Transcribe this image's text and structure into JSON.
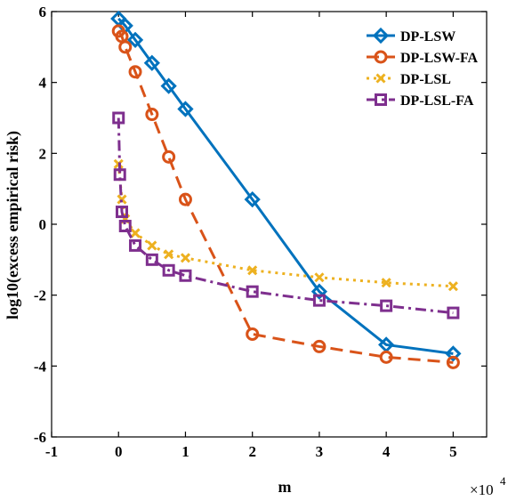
{
  "chart_data": {
    "type": "line",
    "xlabel": "m",
    "ylabel": "log10(excess empirical risk)",
    "x_multiplier_label": "×10",
    "x_multiplier_exponent": "4",
    "xlim": [
      -1,
      5.5
    ],
    "ylim": [
      -6,
      6
    ],
    "xticks": [
      -1,
      0,
      1,
      2,
      3,
      4,
      5
    ],
    "yticks": [
      -6,
      -4,
      -2,
      0,
      2,
      4,
      6
    ],
    "xtick_labels": [
      "-1",
      "0",
      "1",
      "2",
      "3",
      "4",
      "5"
    ],
    "ytick_labels": [
      "-6",
      "-4",
      "-2",
      "0",
      "2",
      "4",
      "6"
    ],
    "grid": false,
    "legend_position": "top-right",
    "series": [
      {
        "name": "DP-LSW",
        "color": "#0072BD",
        "line_style": "solid",
        "marker": "diamond",
        "x": [
          0,
          0.1,
          0.25,
          0.5,
          0.75,
          1,
          2,
          3,
          4,
          5
        ],
        "y": [
          5.8,
          5.6,
          5.2,
          4.55,
          3.9,
          3.25,
          0.7,
          -1.9,
          -3.4,
          -3.65
        ]
      },
      {
        "name": "DP-LSW-FA",
        "color": "#D95319",
        "line_style": "dashed",
        "marker": "circle",
        "x": [
          0,
          0.05,
          0.1,
          0.25,
          0.5,
          0.75,
          1,
          2,
          3,
          4,
          5
        ],
        "y": [
          5.45,
          5.3,
          5.0,
          4.3,
          3.1,
          1.9,
          0.7,
          -3.1,
          -3.45,
          -3.75,
          -3.9
        ]
      },
      {
        "name": "DP-LSL",
        "color": "#EDB120",
        "line_style": "dotted",
        "marker": "x",
        "x": [
          0,
          0.05,
          0.1,
          0.25,
          0.5,
          0.75,
          1,
          2,
          3,
          4,
          5
        ],
        "y": [
          1.7,
          0.7,
          0.15,
          -0.25,
          -0.6,
          -0.85,
          -0.95,
          -1.3,
          -1.5,
          -1.65,
          -1.75
        ]
      },
      {
        "name": "DP-LSL-FA",
        "color": "#7E2F8E",
        "line_style": "dashdot",
        "marker": "square",
        "x": [
          0,
          0.02,
          0.05,
          0.1,
          0.25,
          0.5,
          0.75,
          1,
          2,
          3,
          4,
          5
        ],
        "y": [
          3.0,
          1.4,
          0.35,
          -0.05,
          -0.6,
          -1.0,
          -1.3,
          -1.45,
          -1.9,
          -2.15,
          -2.3,
          -2.5
        ]
      }
    ]
  }
}
